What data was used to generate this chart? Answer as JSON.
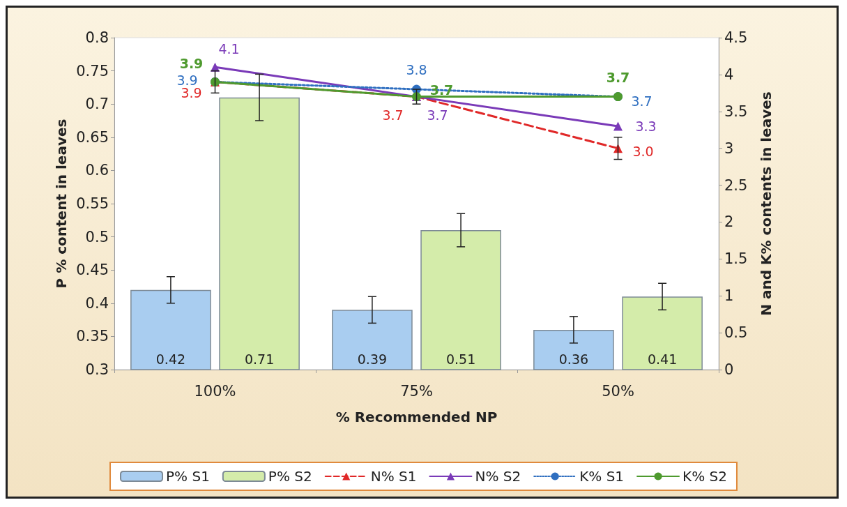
{
  "chart_data": {
    "type": "bar",
    "xlabel": "% Recommended NP",
    "ylabel": "P % content in leaves",
    "y2label": "N and K% contents in leaves",
    "categories": [
      "100%",
      "75%",
      "50%"
    ],
    "series": [
      {
        "name": "P% S1",
        "color": "#a9cdf0",
        "values": [
          0.42,
          0.39,
          0.36
        ],
        "errors": [
          0.02,
          0.02,
          0.02
        ]
      },
      {
        "name": "P% S2",
        "color": "#d4ecaa",
        "values": [
          0.71,
          0.51,
          0.41
        ],
        "errors": [
          0.035,
          0.025,
          0.02
        ]
      },
      {
        "name": "N% S1",
        "type": "line",
        "axis": "y2",
        "color": "#e02828",
        "marker": "triangle",
        "line_style": "dashed",
        "values": [
          3.9,
          3.7,
          3.0
        ],
        "value_labels": [
          "3.9",
          "3.7",
          "3.0"
        ],
        "errors": [
          0.15,
          0.1,
          0.15
        ]
      },
      {
        "name": "N% S2",
        "type": "line",
        "axis": "y2",
        "color": "#7a3ab8",
        "marker": "triangle",
        "line_style": "solid",
        "values": [
          4.1,
          3.7,
          3.3
        ],
        "value_labels": [
          "4.1",
          "3.7",
          "3.3"
        ]
      },
      {
        "name": "K% S1",
        "type": "line",
        "axis": "y2",
        "color": "#2f6fc0",
        "marker": "circle",
        "line_style": "dotted",
        "values": [
          3.9,
          3.8,
          3.7
        ],
        "value_labels": [
          "3.9",
          "3.8",
          "3.7"
        ]
      },
      {
        "name": "K% S2",
        "type": "line",
        "axis": "y2",
        "color": "#4e9a2e",
        "marker": "circle",
        "line_style": "solid",
        "values": [
          3.9,
          3.7,
          3.7
        ],
        "value_labels": [
          "3.9",
          "3.7",
          "3.7"
        ]
      }
    ],
    "ylim": [
      0.3,
      0.8
    ],
    "yticks": [
      0.3,
      0.35,
      0.4,
      0.45,
      0.5,
      0.55,
      0.6,
      0.65,
      0.7,
      0.75,
      0.8
    ],
    "y2lim": [
      0,
      4.5
    ],
    "y2ticks": [
      0,
      0.5,
      1,
      1.5,
      2,
      2.5,
      3,
      3.5,
      4,
      4.5
    ],
    "data_labels": true,
    "legend": "bottom",
    "grid": false
  }
}
